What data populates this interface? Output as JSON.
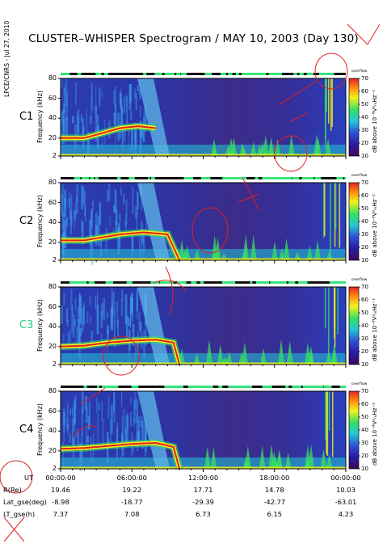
{
  "title": "CLUSTER–WHISPER Spectrogram / MAY 10, 2003 (Day 130)",
  "side_stamp": "LPCE/CNRS - Jul 27, 2010",
  "colors": {
    "background": "#2e3aa8",
    "deep": "#3a0a5a",
    "cyan": "#22c7d6",
    "green": "#38e060",
    "yellow": "#f2f21a",
    "red": "#e22020",
    "annotation": "#e02020"
  },
  "chart_data": [
    {
      "type": "heatmap",
      "satellite": "C1",
      "satellite_color": "#000000",
      "ylabel": "Frequency (kHz)",
      "yticks": [
        "80",
        "60",
        "40",
        "20",
        "2"
      ],
      "ylim": [
        2,
        80
      ],
      "colorbar": {
        "label": "dB above 10⁻⁸V²ₘHz⁻¹",
        "ticks": [
          "70",
          "60",
          "50",
          "40",
          "30",
          "20",
          "10"
        ],
        "range": [
          10,
          70
        ],
        "corner": "overflow"
      },
      "emission_line": [
        {
          "t": 0,
          "f": 20
        },
        {
          "t": 2,
          "f": 20
        },
        {
          "t": 3.5,
          "f": 25
        },
        {
          "t": 5,
          "f": 30
        },
        {
          "t": 6.5,
          "f": 32
        },
        {
          "t": 8,
          "f": 30
        }
      ]
    },
    {
      "type": "heatmap",
      "satellite": "C2",
      "satellite_color": "#000000",
      "ylabel": "Frequency (kHz)",
      "yticks": [
        "80",
        "60",
        "40",
        "20",
        "2"
      ],
      "ylim": [
        2,
        80
      ],
      "colorbar": {
        "label": "dB above 10⁻⁸V²ₘHz⁻¹",
        "ticks": [
          "70",
          "60",
          "50",
          "40",
          "30",
          "20",
          "10"
        ],
        "range": [
          10,
          70
        ],
        "corner": "overflow"
      },
      "emission_line": [
        {
          "t": 0,
          "f": 22
        },
        {
          "t": 2,
          "f": 22
        },
        {
          "t": 3.5,
          "f": 25
        },
        {
          "t": 5,
          "f": 28
        },
        {
          "t": 7,
          "f": 30
        },
        {
          "t": 9,
          "f": 28
        },
        {
          "t": 10,
          "f": 2
        }
      ]
    },
    {
      "type": "heatmap",
      "satellite": "C3",
      "satellite_color": "#1fd07a",
      "ylabel": "Frequency (kHz)",
      "yticks": [
        "80",
        "60",
        "40",
        "20",
        "2"
      ],
      "ylim": [
        2,
        80
      ],
      "colorbar": {
        "label": "dB above 10⁻⁸V²ₘHz⁻¹",
        "ticks": [
          "70",
          "60",
          "50",
          "40",
          "30",
          "20",
          "10"
        ],
        "range": [
          10,
          70
        ],
        "corner": "overflow"
      },
      "emission_line": [
        {
          "t": 0,
          "f": 20
        },
        {
          "t": 2,
          "f": 21
        },
        {
          "t": 4,
          "f": 24
        },
        {
          "t": 6,
          "f": 26
        },
        {
          "t": 8,
          "f": 27
        },
        {
          "t": 9.5,
          "f": 24
        },
        {
          "t": 10,
          "f": 2
        }
      ]
    },
    {
      "type": "heatmap",
      "satellite": "C4",
      "satellite_color": "#000000",
      "ylabel": "Frequency (kHz)",
      "yticks": [
        "80",
        "60",
        "40",
        "20",
        "2"
      ],
      "ylim": [
        2,
        80
      ],
      "colorbar": {
        "label": "dB above 10⁻⁸V²ₘHz⁻¹",
        "ticks": [
          "70",
          "60",
          "50",
          "40",
          "30",
          "20",
          "10"
        ],
        "range": [
          10,
          70
        ],
        "corner": "overflow"
      },
      "emission_line": [
        {
          "t": 0,
          "f": 22
        },
        {
          "t": 2,
          "f": 23
        },
        {
          "t": 4,
          "f": 25
        },
        {
          "t": 6,
          "f": 27
        },
        {
          "t": 8,
          "f": 28
        },
        {
          "t": 9.5,
          "f": 24
        },
        {
          "t": 10,
          "f": 2
        }
      ]
    }
  ],
  "x_axis": {
    "ticks": [
      "00:00:00",
      "06:00:00",
      "12:00:00",
      "18:00:00",
      "00:00:00"
    ],
    "xlim_hours": [
      0,
      24
    ],
    "rows": [
      {
        "label": "UT",
        "values": [
          "00:00:00",
          "06:00:00",
          "12:00:00",
          "18:00:00",
          "00:00:00"
        ]
      },
      {
        "label": "R(Re)",
        "values": [
          "19.46",
          "19.22",
          "17.71",
          "14.78",
          "10.03"
        ]
      },
      {
        "label": "Lat_gse(deg)",
        "values": [
          "-8.98",
          "-18.77",
          "-29.39",
          "-42.77",
          "-63.01"
        ]
      },
      {
        "label": "LT_gse(h)",
        "values": [
          "7.37",
          "7.08",
          "6.73",
          "6.15",
          "4.23"
        ]
      }
    ]
  }
}
